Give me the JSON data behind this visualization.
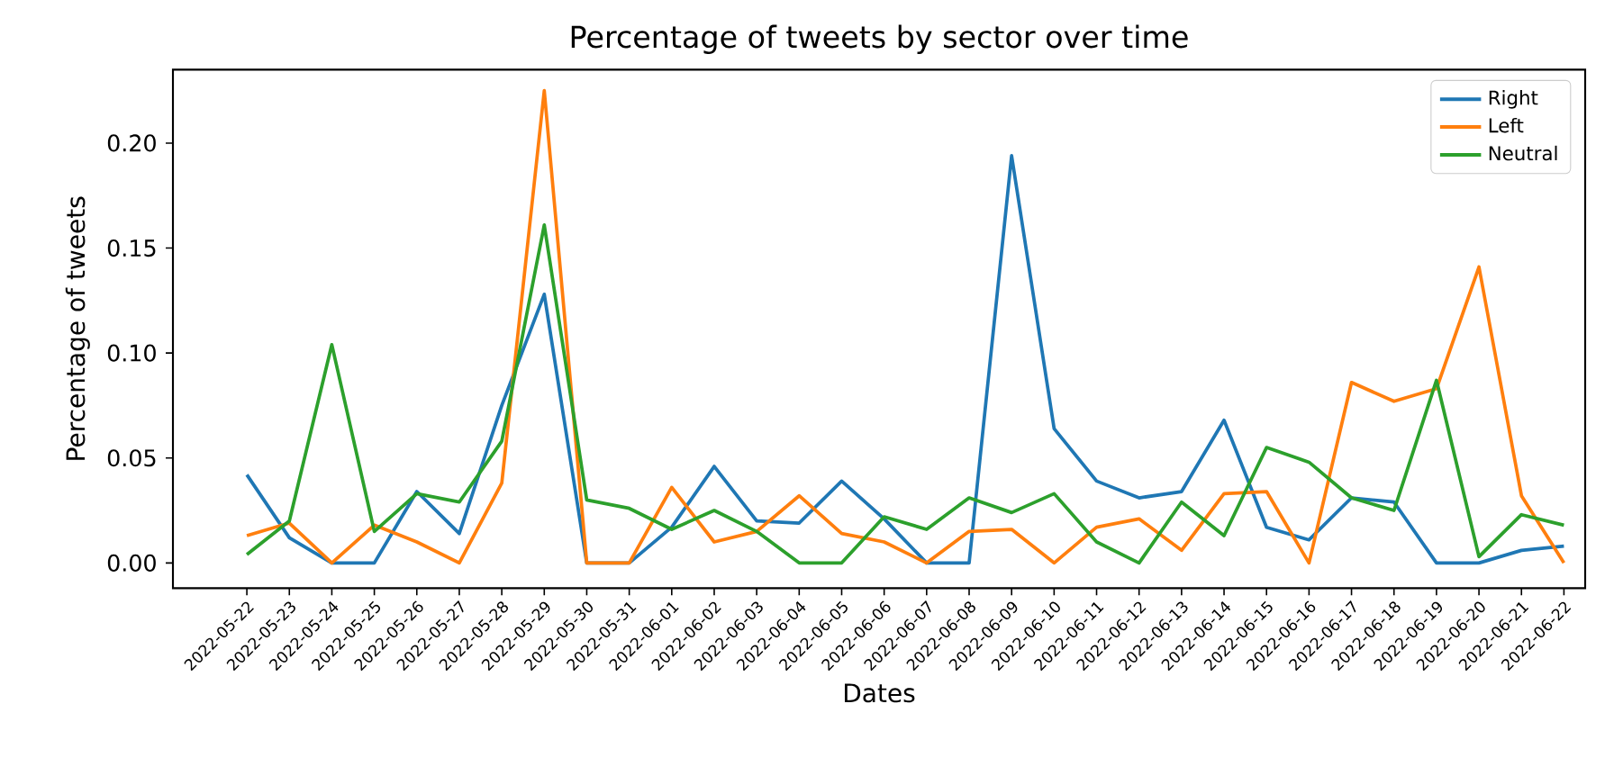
{
  "chart_data": {
    "type": "line",
    "title": "Percentage of tweets by sector over time",
    "xlabel": "Dates",
    "ylabel": "Percentage of tweets",
    "categories": [
      "2022-05-22",
      "2022-05-23",
      "2022-05-24",
      "2022-05-25",
      "2022-05-26",
      "2022-05-27",
      "2022-05-28",
      "2022-05-29",
      "2022-05-30",
      "2022-05-31",
      "2022-06-01",
      "2022-06-02",
      "2022-06-03",
      "2022-06-04",
      "2022-06-05",
      "2022-06-06",
      "2022-06-07",
      "2022-06-08",
      "2022-06-09",
      "2022-06-10",
      "2022-06-11",
      "2022-06-12",
      "2022-06-13",
      "2022-06-14",
      "2022-06-15",
      "2022-06-16",
      "2022-06-17",
      "2022-06-18",
      "2022-06-19",
      "2022-06-20",
      "2022-06-21",
      "2022-06-22"
    ],
    "series": [
      {
        "name": "Right",
        "color": "#1f77b4",
        "values": [
          0.042,
          0.012,
          0,
          0,
          0.034,
          0.014,
          0.075,
          0.128,
          0,
          0,
          0.017,
          0.046,
          0.02,
          0.019,
          0.039,
          0.021,
          0,
          0,
          0.194,
          0.064,
          0.039,
          0.031,
          0.034,
          0.068,
          0.017,
          0.011,
          0.031,
          0.029,
          0,
          0,
          0.006,
          0.008
        ]
      },
      {
        "name": "Left",
        "color": "#ff7f0e",
        "values": [
          0.013,
          0.019,
          0,
          0.018,
          0.01,
          0,
          0.038,
          0.225,
          0,
          0,
          0.036,
          0.01,
          0.015,
          0.032,
          0.014,
          0.01,
          0,
          0.015,
          0.016,
          0,
          0.017,
          0.021,
          0.006,
          0.033,
          0.034,
          0,
          0.086,
          0.077,
          0.083,
          0.141,
          0.032,
          0
        ]
      },
      {
        "name": "Neutral",
        "color": "#2ca02c",
        "values": [
          0.004,
          0.02,
          0.104,
          0.015,
          0.033,
          0.029,
          0.058,
          0.161,
          0.03,
          0.026,
          0.016,
          0.025,
          0.015,
          0,
          0,
          0.022,
          0.016,
          0.031,
          0.024,
          0.033,
          0.01,
          0,
          0.029,
          0.013,
          0.055,
          0.048,
          0.031,
          0.025,
          0.087,
          0.003,
          0.023,
          0.018
        ]
      }
    ],
    "ylim": [
      -0.012,
      0.235
    ],
    "yticks": [
      {
        "value": 0,
        "label": "0.00"
      },
      {
        "value": 0.05,
        "label": "0.05"
      },
      {
        "value": 0.1,
        "label": "0.10"
      },
      {
        "value": 0.15,
        "label": "0.15"
      },
      {
        "value": 0.2,
        "label": "0.20"
      }
    ],
    "legend": "top right",
    "grid": false,
    "marker": "none",
    "line_style": "solid"
  }
}
